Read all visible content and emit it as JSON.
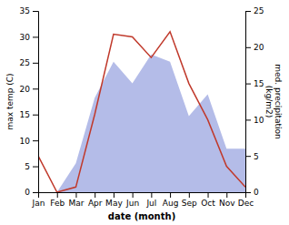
{
  "chart_data": {
    "type": "line",
    "xlabel": "date (month)",
    "ylabel": "max temp (C)",
    "y2label": "med. precipitation\n(kg/m2)",
    "categories": [
      "Jan",
      "Feb",
      "Mar",
      "Apr",
      "May",
      "Jun",
      "Jul",
      "Aug",
      "Sep",
      "Oct",
      "Nov",
      "Dec"
    ],
    "series": [
      {
        "type": "area",
        "axis": "y2",
        "color": "#b4bce8",
        "values": [
          0,
          0,
          4,
          13,
          18,
          15,
          19,
          18,
          10.5,
          13.5,
          6,
          6
        ]
      },
      {
        "type": "line",
        "color": "#c0392b",
        "values": [
          7,
          0,
          1,
          15,
          30.5,
          30,
          26,
          31,
          21,
          14,
          5,
          1
        ]
      }
    ],
    "ylim": [
      0,
      35
    ],
    "yticks": [
      0,
      5,
      10,
      15,
      20,
      25,
      30,
      35
    ],
    "y2lim": [
      0,
      25
    ],
    "y2ticks": [
      0,
      5,
      10,
      15,
      20,
      25
    ],
    "grid": false
  }
}
